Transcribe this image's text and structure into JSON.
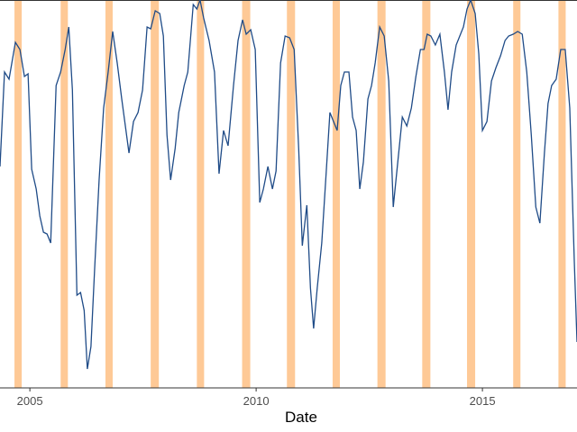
{
  "chart_data": {
    "type": "line",
    "x_label": "Date",
    "x": [
      2004.34,
      2004.44,
      2004.54,
      2004.68,
      2004.78,
      2004.88,
      2004.96,
      2005.04,
      2005.14,
      2005.22,
      2005.3,
      2005.38,
      2005.46,
      2005.58,
      2005.68,
      2005.78,
      2005.86,
      2005.94,
      2006.04,
      2006.12,
      2006.2,
      2006.27,
      2006.35,
      2006.43,
      2006.53,
      2006.63,
      2006.73,
      2006.83,
      2006.93,
      2007.03,
      2007.19,
      2007.29,
      2007.39,
      2007.49,
      2007.59,
      2007.67,
      2007.77,
      2007.87,
      2007.95,
      2008.03,
      2008.11,
      2008.21,
      2008.29,
      2008.41,
      2008.49,
      2008.61,
      2008.69,
      2008.76,
      2008.84,
      2008.96,
      2009.08,
      2009.18,
      2009.28,
      2009.38,
      2009.5,
      2009.6,
      2009.7,
      2009.78,
      2009.88,
      2009.98,
      2010.08,
      2010.16,
      2010.26,
      2010.36,
      2010.44,
      2010.54,
      2010.64,
      2010.74,
      2010.84,
      2010.94,
      2011.02,
      2011.12,
      2011.2,
      2011.27,
      2011.35,
      2011.45,
      2011.55,
      2011.63,
      2011.71,
      2011.79,
      2011.87,
      2011.95,
      2012.05,
      2012.13,
      2012.21,
      2012.29,
      2012.37,
      2012.47,
      2012.55,
      2012.63,
      2012.73,
      2012.83,
      2012.93,
      2013.03,
      2013.13,
      2013.23,
      2013.33,
      2013.43,
      2013.53,
      2013.63,
      2013.71,
      2013.78,
      2013.86,
      2013.96,
      2014.06,
      2014.16,
      2014.24,
      2014.32,
      2014.42,
      2014.5,
      2014.58,
      2014.66,
      2014.74,
      2014.84,
      2014.92,
      2015.0,
      2015.1,
      2015.2,
      2015.3,
      2015.4,
      2015.5,
      2015.58,
      2015.68,
      2015.78,
      2015.88,
      2015.98,
      2016.08,
      2016.18,
      2016.27,
      2016.37,
      2016.45,
      2016.53,
      2016.63,
      2016.73,
      2016.83,
      2016.93,
      2017.03,
      2017.09
    ],
    "series": [
      {
        "color": "#1f4b87",
        "values": [
          246,
          351,
          343,
          384,
          376,
          346,
          349,
          243,
          221,
          191,
          173,
          171,
          161,
          336,
          351,
          376,
          401,
          331,
          103,
          106,
          86,
          21,
          46,
          131,
          231,
          311,
          351,
          396,
          361,
          321,
          261,
          296,
          306,
          331,
          401,
          399,
          419,
          416,
          391,
          281,
          231,
          266,
          306,
          336,
          351,
          426,
          421,
          431,
          411,
          386,
          351,
          238,
          286,
          269,
          336,
          386,
          409,
          393,
          398,
          376,
          206,
          221,
          246,
          221,
          241,
          361,
          391,
          389,
          376,
          266,
          158,
          203,
          111,
          66,
          111,
          161,
          241,
          306,
          296,
          286,
          336,
          351,
          351,
          301,
          286,
          221,
          251,
          321,
          336,
          361,
          401,
          391,
          341,
          201,
          251,
          301,
          291,
          311,
          346,
          376,
          376,
          393,
          391,
          381,
          393,
          351,
          309,
          351,
          381,
          391,
          401,
          421,
          431,
          416,
          371,
          286,
          296,
          341,
          356,
          369,
          386,
          391,
          393,
          396,
          393,
          351,
          281,
          201,
          183,
          261,
          316,
          336,
          343,
          376,
          376,
          311,
          141,
          51
        ]
      }
    ],
    "bands": [
      [
        2004.66,
        2004.82
      ],
      [
        2005.68,
        2005.84
      ],
      [
        2006.67,
        2006.83
      ],
      [
        2007.67,
        2007.85
      ],
      [
        2008.69,
        2008.85
      ],
      [
        2009.69,
        2009.87
      ],
      [
        2010.68,
        2010.86
      ],
      [
        2011.69,
        2011.85
      ],
      [
        2012.68,
        2012.86
      ],
      [
        2013.67,
        2013.85
      ],
      [
        2014.66,
        2014.84
      ],
      [
        2015.68,
        2015.84
      ],
      [
        2016.68,
        2016.84
      ]
    ],
    "band_color": "#fec996",
    "xlim": [
      2004.34,
      2017.09
    ],
    "xticks": [
      2005,
      2010,
      2015
    ],
    "ylim": [
      0,
      431
    ]
  }
}
